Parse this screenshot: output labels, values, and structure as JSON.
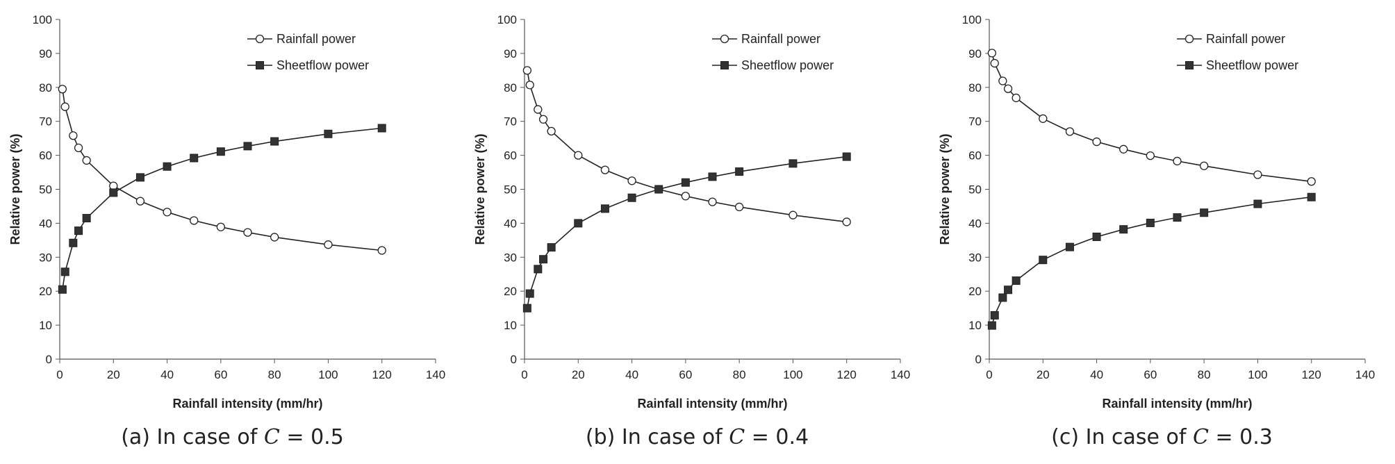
{
  "figure": {
    "captions": [
      {
        "prefix": "(a) In case of ",
        "var": "C",
        "suffix": " = 0.5"
      },
      {
        "prefix": "(b) In case of ",
        "var": "C",
        "suffix": " = 0.4"
      },
      {
        "prefix": "(c) In case of ",
        "var": "C",
        "suffix": " = 0.3"
      }
    ]
  },
  "chart_data": [
    {
      "type": "line",
      "xlabel": "Rainfall intensity (mm/hr)",
      "ylabel": "Relative power (%)",
      "xlim": [
        0,
        140
      ],
      "ylim": [
        0,
        100
      ],
      "xticks": [
        "0",
        "20",
        "40",
        "60",
        "80",
        "100",
        "120",
        "140"
      ],
      "yticks": [
        "0",
        "10",
        "20",
        "30",
        "40",
        "50",
        "60",
        "70",
        "80",
        "90",
        "100"
      ],
      "grid": false,
      "legend": "top-right",
      "x": [
        1,
        2,
        5,
        7,
        10,
        20,
        30,
        40,
        50,
        60,
        70,
        80,
        100,
        120
      ],
      "series": [
        {
          "name": "Rainfall power",
          "marker": "circle-open",
          "values": [
            79.5,
            74.3,
            65.8,
            62.2,
            58.5,
            51.0,
            46.5,
            43.3,
            40.8,
            38.9,
            37.3,
            35.9,
            33.7,
            32.0
          ]
        },
        {
          "name": "Sheetflow power",
          "marker": "square-filled",
          "values": [
            20.5,
            25.7,
            34.2,
            37.8,
            41.5,
            49.0,
            53.5,
            56.7,
            59.2,
            61.1,
            62.7,
            64.1,
            66.3,
            68.0
          ]
        }
      ],
      "colors": {
        "line": "#222222",
        "marker_fill_open": "#ffffff",
        "marker_fill_solid": "#333333"
      }
    },
    {
      "type": "line",
      "xlabel": "Rainfall intensity (mm/hr)",
      "ylabel": "Relative power (%)",
      "xlim": [
        0,
        140
      ],
      "ylim": [
        0,
        100
      ],
      "xticks": [
        "0",
        "20",
        "40",
        "60",
        "80",
        "100",
        "120",
        "140"
      ],
      "yticks": [
        "0",
        "10",
        "20",
        "30",
        "40",
        "50",
        "60",
        "70",
        "80",
        "90",
        "100"
      ],
      "grid": false,
      "legend": "top-right",
      "x": [
        1,
        2,
        5,
        7,
        10,
        20,
        30,
        40,
        50,
        60,
        70,
        80,
        100,
        120
      ],
      "series": [
        {
          "name": "Rainfall power",
          "marker": "circle-open",
          "values": [
            85.0,
            80.7,
            73.5,
            70.6,
            67.1,
            60.0,
            55.7,
            52.5,
            50.0,
            48.0,
            46.3,
            44.8,
            42.4,
            40.4
          ]
        },
        {
          "name": "Sheetflow power",
          "marker": "square-filled",
          "values": [
            15.0,
            19.3,
            26.5,
            29.4,
            32.9,
            40.0,
            44.3,
            47.5,
            50.0,
            52.0,
            53.7,
            55.2,
            57.6,
            59.6
          ]
        }
      ],
      "colors": {
        "line": "#222222",
        "marker_fill_open": "#ffffff",
        "marker_fill_solid": "#333333"
      }
    },
    {
      "type": "line",
      "xlabel": "Rainfall intensity (mm/hr)",
      "ylabel": "Relative power (%)",
      "xlim": [
        0,
        140
      ],
      "ylim": [
        0,
        100
      ],
      "xticks": [
        "0",
        "20",
        "40",
        "60",
        "80",
        "100",
        "120",
        "140"
      ],
      "yticks": [
        "0",
        "10",
        "20",
        "30",
        "40",
        "50",
        "60",
        "70",
        "80",
        "90",
        "100"
      ],
      "grid": false,
      "legend": "top-right",
      "x": [
        1,
        2,
        5,
        7,
        10,
        20,
        30,
        40,
        50,
        60,
        70,
        80,
        100,
        120
      ],
      "series": [
        {
          "name": "Rainfall power",
          "marker": "circle-open",
          "values": [
            90.1,
            87.1,
            81.9,
            79.6,
            76.9,
            70.8,
            67.0,
            64.0,
            61.8,
            59.9,
            58.3,
            56.9,
            54.3,
            52.3
          ]
        },
        {
          "name": "Sheetflow power",
          "marker": "square-filled",
          "values": [
            9.9,
            12.9,
            18.1,
            20.4,
            23.1,
            29.2,
            33.0,
            36.0,
            38.2,
            40.1,
            41.7,
            43.1,
            45.7,
            47.7
          ]
        }
      ],
      "colors": {
        "line": "#222222",
        "marker_fill_open": "#ffffff",
        "marker_fill_solid": "#333333"
      }
    }
  ]
}
